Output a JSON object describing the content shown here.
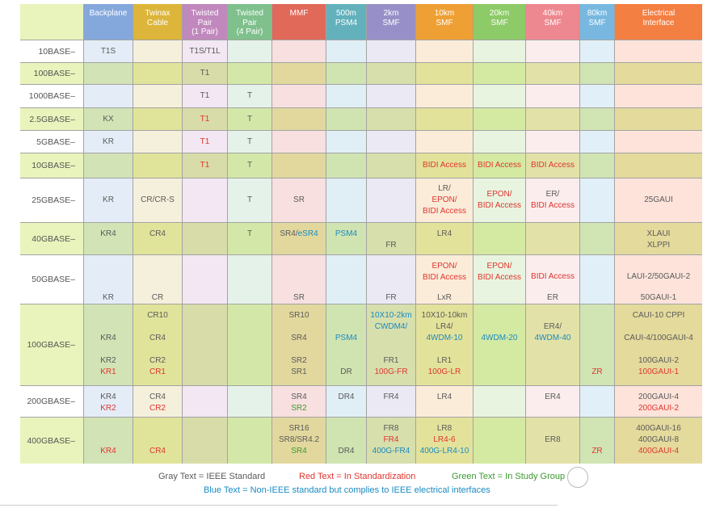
{
  "colors": {
    "text": {
      "g": "#5a5a5a",
      "r": "#e0352f",
      "b": "#1a8ac0",
      "n": "#3c9a30"
    },
    "label": {
      "light": "#ffffff",
      "dark": "#e8f4bb",
      "header": "#e8f4bb"
    }
  },
  "columns": [
    {
      "name": "backplane",
      "lines": [
        "Backplane"
      ],
      "header": "#85a8dc",
      "light": "#e4edf7",
      "dark": "#d2e3b6"
    },
    {
      "name": "twinax-cable",
      "lines": [
        "Twinax",
        "Cable"
      ],
      "header": "#dcb53a",
      "light": "#f5f0dc",
      "dark": "#e0e49a"
    },
    {
      "name": "twisted-pair-1",
      "lines": [
        "Twisted",
        "Pair",
        "(1 Pair)"
      ],
      "header": "#c088bc",
      "light": "#f2e7f2",
      "dark": "#d8dca8"
    },
    {
      "name": "twisted-pair-4",
      "lines": [
        "Twisted",
        "Pair",
        "(4 Pair)"
      ],
      "header": "#7fc08c",
      "light": "#e5f2ea",
      "dark": "#d3e8a8"
    },
    {
      "name": "mmf",
      "lines": [
        "MMF"
      ],
      "header": "#e0695a",
      "light": "#f8e0e0",
      "dark": "#e2d89e"
    },
    {
      "name": "500m-psm4",
      "lines": [
        "500m",
        "PSM4"
      ],
      "header": "#63b1bc",
      "light": "#e0eff5",
      "dark": "#d0e4b2"
    },
    {
      "name": "2km-smf",
      "lines": [
        "2km",
        "SMF"
      ],
      "header": "#9790c8",
      "light": "#ebe9f4",
      "dark": "#d7dfac"
    },
    {
      "name": "10km-smf",
      "lines": [
        "10km",
        "SMF"
      ],
      "header": "#eea035",
      "light": "#fbecd9",
      "dark": "#e3e29a"
    },
    {
      "name": "20km-smf",
      "lines": [
        "20km",
        "SMF"
      ],
      "header": "#8dca68",
      "light": "#e8f4e0",
      "dark": "#d4eaa2"
    },
    {
      "name": "40km-smf",
      "lines": [
        "40km",
        "SMF"
      ],
      "header": "#ee8890",
      "light": "#fbeded",
      "dark": "#e2e2a8"
    },
    {
      "name": "80km-smf",
      "lines": [
        "80km",
        "SMF"
      ],
      "header": "#78b8e0",
      "light": "#e1f0f8",
      "dark": "#d0e4b4"
    },
    {
      "name": "electrical-interface",
      "lines": [
        "Electrical",
        "Interface"
      ],
      "header": "#f47f42",
      "light": "#fde3da",
      "dark": "#e4da9c"
    }
  ],
  "rows": [
    {
      "label": "10BASE–",
      "cells": [
        [
          "T1S"
        ],
        [],
        [
          "T1S/T1L"
        ],
        [],
        [],
        [],
        [],
        [],
        [],
        [],
        [],
        []
      ]
    },
    {
      "label": "100BASE–",
      "cells": [
        [],
        [],
        [
          "T1"
        ],
        [],
        [],
        [],
        [],
        [],
        [],
        [],
        [],
        []
      ]
    },
    {
      "label": "1000BASE–",
      "cells": [
        [],
        [],
        [
          "T1"
        ],
        [
          "T"
        ],
        [],
        [],
        [],
        [],
        [],
        [],
        [],
        []
      ]
    },
    {
      "label": "2.5GBASE–",
      "cells": [
        [
          "KX"
        ],
        [],
        [
          {
            "t": "T1",
            "c": "r"
          }
        ],
        [
          "T"
        ],
        [],
        [],
        [],
        [],
        [],
        [],
        [],
        []
      ]
    },
    {
      "label": "5GBASE–",
      "cells": [
        [
          "KR"
        ],
        [],
        [
          {
            "t": "T1",
            "c": "r"
          }
        ],
        [
          "T"
        ],
        [],
        [],
        [],
        [],
        [],
        [],
        [],
        []
      ]
    },
    {
      "label": "10GBASE–",
      "cells": [
        [],
        [],
        [
          {
            "t": "T1",
            "c": "r"
          }
        ],
        [
          "T"
        ],
        [],
        [],
        [],
        [
          {
            "t": "BIDI Access",
            "c": "r"
          }
        ],
        [
          {
            "t": "BIDI Access",
            "c": "r"
          }
        ],
        [
          {
            "t": "BIDI Access",
            "c": "r"
          }
        ],
        [],
        []
      ]
    },
    {
      "label": "25GBASE–",
      "cells": [
        [
          "KR"
        ],
        [
          "CR/CR-S"
        ],
        [],
        [
          "T"
        ],
        [
          "SR"
        ],
        [],
        [],
        [
          "LR/",
          {
            "t": "EPON/",
            "c": "r"
          },
          {
            "t": "BIDI Access",
            "c": "r"
          }
        ],
        [
          {
            "t": "EPON/",
            "c": "r"
          },
          {
            "t": "BIDI Access",
            "c": "r"
          }
        ],
        [
          "ER/",
          {
            "t": "BIDI Access",
            "c": "r"
          }
        ],
        [],
        [
          "25GAUI"
        ]
      ]
    },
    {
      "label": "40GBASE–",
      "cells": [
        [
          "KR4"
        ],
        [
          "CR4"
        ],
        [],
        [
          "T"
        ],
        [
          [
            {
              "t": "SR4/",
              "c": "g"
            },
            {
              "t": "eSR4",
              "c": "b"
            }
          ]
        ],
        [
          {
            "t": "PSM4",
            "c": "b"
          }
        ],
        [
          null,
          "FR"
        ],
        [
          "LR4"
        ],
        [],
        [],
        [],
        [
          "XLAUI",
          "XLPPI"
        ]
      ]
    },
    {
      "label": "50GBASE–",
      "cells": [
        [
          null,
          null,
          null,
          "KR"
        ],
        [
          null,
          null,
          null,
          "CR"
        ],
        [],
        [],
        [
          null,
          null,
          null,
          "SR"
        ],
        [],
        [
          null,
          null,
          null,
          "FR"
        ],
        [
          {
            "t": "EPON/",
            "c": "r"
          },
          {
            "t": "BIDI Access",
            "c": "r"
          },
          null,
          "LxR"
        ],
        [
          {
            "t": "EPON/",
            "c": "r"
          },
          {
            "t": "BIDI Access",
            "c": "r"
          }
        ],
        [
          null,
          {
            "t": "BIDI Access",
            "c": "r"
          },
          null,
          "ER"
        ],
        [],
        [
          null,
          "LAUI-2/50GAUI-2",
          null,
          "50GAUI-1"
        ]
      ]
    },
    {
      "label": "100GBASE–",
      "cells": [
        [
          null,
          null,
          "KR4",
          null,
          "KR2",
          {
            "t": "KR1",
            "c": "r"
          }
        ],
        [
          "CR10",
          null,
          "CR4",
          null,
          "CR2",
          {
            "t": "CR1",
            "c": "r"
          }
        ],
        [],
        [],
        [
          "SR10",
          null,
          "SR4",
          null,
          "SR2",
          "SR1"
        ],
        [
          null,
          null,
          {
            "t": "PSM4",
            "c": "b"
          },
          null,
          null,
          "DR"
        ],
        [
          {
            "t": "10X10-2km",
            "c": "b"
          },
          {
            "t": "CWDM4/",
            "c": "b"
          },
          null,
          null,
          "FR1",
          {
            "t": "100G-FR",
            "c": "r"
          }
        ],
        [
          "10X10-10km",
          "LR4/",
          {
            "t": "4WDM-10",
            "c": "b"
          },
          null,
          "LR1",
          {
            "t": "100G-LR",
            "c": "r"
          }
        ],
        [
          null,
          null,
          {
            "t": "4WDM-20",
            "c": "b"
          }
        ],
        [
          null,
          "ER4/",
          {
            "t": "4WDM-40",
            "c": "b"
          }
        ],
        [
          null,
          null,
          null,
          null,
          null,
          {
            "t": "ZR",
            "c": "r"
          }
        ],
        [
          "CAUI-10 CPPI",
          null,
          "CAUI-4/100GAUI-4",
          null,
          "100GAUI-2",
          {
            "t": "100GAUI-1",
            "c": "r"
          }
        ]
      ]
    },
    {
      "label": "200GBASE–",
      "cells": [
        [
          "KR4",
          {
            "t": "KR2",
            "c": "r"
          }
        ],
        [
          "CR4",
          {
            "t": "CR2",
            "c": "r"
          }
        ],
        [],
        [],
        [
          "SR4",
          {
            "t": "SR2",
            "c": "n"
          }
        ],
        [
          "DR4"
        ],
        [
          "FR4"
        ],
        [
          "LR4"
        ],
        [],
        [
          "ER4"
        ],
        [],
        [
          "200GAUI-4",
          {
            "t": "200GAUI-2",
            "c": "r"
          }
        ]
      ]
    },
    {
      "label": "400GBASE–",
      "cells": [
        [
          null,
          null,
          {
            "t": "KR4",
            "c": "r"
          }
        ],
        [
          null,
          null,
          {
            "t": "CR4",
            "c": "r"
          }
        ],
        [],
        [],
        [
          "SR16",
          "SR8/SR4.2",
          {
            "t": "SR4",
            "c": "n"
          }
        ],
        [
          null,
          null,
          "DR4"
        ],
        [
          "FR8",
          {
            "t": "FR4",
            "c": "r"
          },
          {
            "t": "400G-FR4",
            "c": "b"
          }
        ],
        [
          "LR8",
          {
            "t": "LR4-6",
            "c": "r"
          },
          {
            "t": "400G-LR4-10",
            "c": "b"
          }
        ],
        [],
        [
          null,
          "ER8"
        ],
        [
          null,
          null,
          {
            "t": "ZR",
            "c": "r"
          }
        ],
        [
          "400GAUI-16",
          "400GAUI-8",
          {
            "t": "400GAUI-4",
            "c": "r"
          }
        ]
      ]
    }
  ],
  "legend": {
    "gray": "Gray Text = IEEE Standard",
    "red": "Red Text = In Standardization",
    "green": "Green Text = In Study Group",
    "blue": "Blue Text = Non-IEEE standard but complies to IEEE electrical interfaces"
  },
  "watermark": "光通信充电宝"
}
